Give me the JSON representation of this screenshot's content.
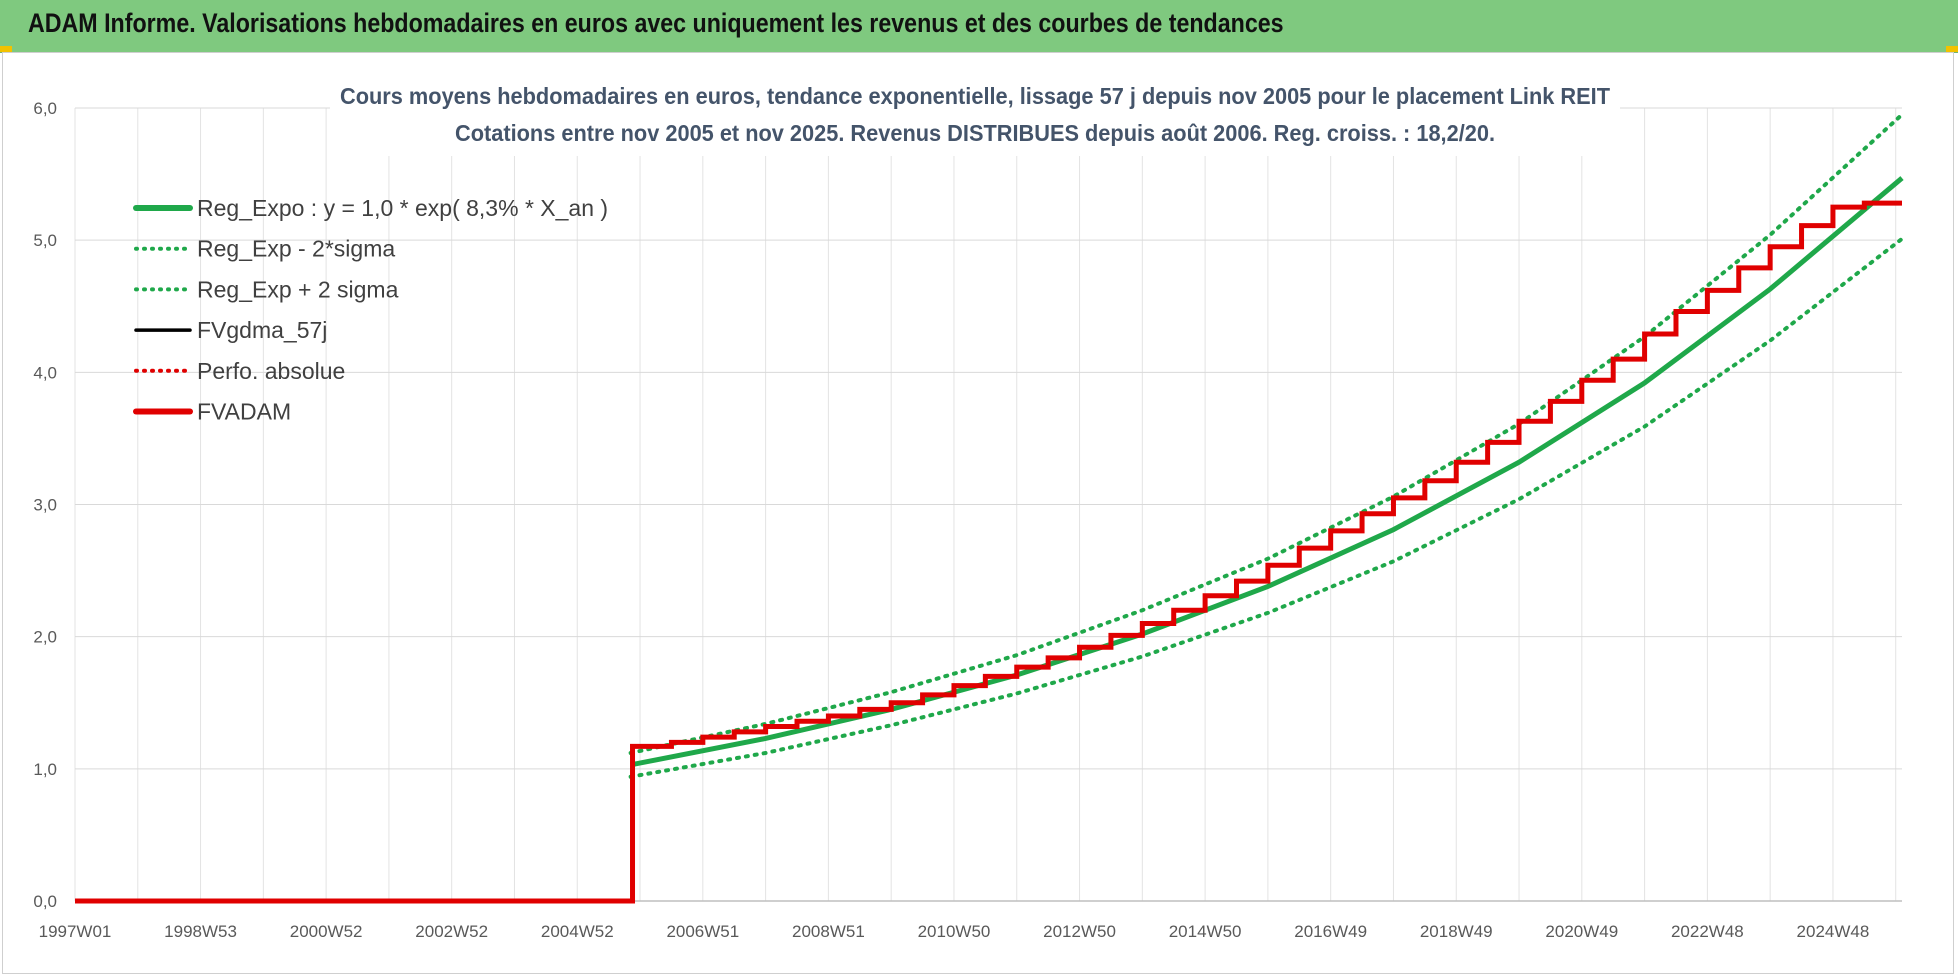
{
  "header": {
    "title": "ADAM Informe. Valorisations hebdomadaires en euros avec uniquement les revenus et des courbes de tendances"
  },
  "colors": {
    "header_bg": "#7fc97f",
    "reg_expo": "#1fa84a",
    "bands": "#1fa84a",
    "fvgdma": "#000000",
    "perfo": "#e00000",
    "fvadam": "#e00000"
  },
  "chart_data": {
    "type": "line",
    "title_lines": [
      "Cours moyens hebdomadaires en euros, tendance exponentielle, lissage 57 j depuis nov 2005 pour le placement Link REIT",
      "Cotations entre nov 2005 et nov 2025. Revenus DISTRIBUES depuis août 2006. Reg. croiss. : 18,2/20."
    ],
    "xlabel": "",
    "ylabel": "",
    "x_range": [
      1997.0,
      2026.1
    ],
    "ylim": [
      0,
      6
    ],
    "y_ticks": [
      "0,0",
      "1,0",
      "2,0",
      "3,0",
      "4,0",
      "5,0",
      "6,0"
    ],
    "x_ticks": [
      "1997W01",
      "1998W53",
      "2000W52",
      "2002W52",
      "2004W52",
      "2006W51",
      "2008W51",
      "2010W50",
      "2012W50",
      "2014W50",
      "2016W49",
      "2018W49",
      "2020W49",
      "2022W48",
      "2024W48"
    ],
    "grid": true,
    "legend_position": "top-left",
    "legend": [
      {
        "label": "Reg_Expo : y = 1,0 * exp( 8,3% *  X_an )",
        "style": "solid-thick",
        "color": "#1fa84a"
      },
      {
        "label": "Reg_Exp - 2*sigma",
        "style": "dotted",
        "color": "#1fa84a"
      },
      {
        "label": "Reg_Exp + 2 sigma",
        "style": "dotted",
        "color": "#1fa84a"
      },
      {
        "label": "FVgdma_57j",
        "style": "solid",
        "color": "#000000"
      },
      {
        "label": "Perfo. absolue",
        "style": "dotted",
        "color": "#e00000"
      },
      {
        "label": "FVADAM",
        "style": "solid-thick",
        "color": "#e00000"
      }
    ],
    "series": [
      {
        "name": "Reg_Expo : y = 1,0 * exp( 8,3% *  X_an )",
        "x": [
          2005.85,
          2008,
          2010,
          2012,
          2014,
          2016,
          2018,
          2020,
          2022,
          2024,
          2026.1
        ],
        "values": [
          1.03,
          1.23,
          1.45,
          1.71,
          2.02,
          2.38,
          2.81,
          3.32,
          3.92,
          4.63,
          5.47
        ]
      },
      {
        "name": "Reg_Exp - 2*sigma",
        "x": [
          2005.85,
          2008,
          2010,
          2012,
          2014,
          2016,
          2018,
          2020,
          2022,
          2024,
          2026.1
        ],
        "values": [
          0.94,
          1.12,
          1.33,
          1.57,
          1.85,
          2.18,
          2.57,
          3.04,
          3.59,
          4.24,
          5.01
        ]
      },
      {
        "name": "Reg_Exp + 2 sigma",
        "x": [
          2005.85,
          2008,
          2010,
          2012,
          2014,
          2016,
          2018,
          2020,
          2022,
          2024,
          2026.1
        ],
        "values": [
          1.12,
          1.34,
          1.58,
          1.86,
          2.2,
          2.59,
          3.06,
          3.61,
          4.27,
          5.04,
          5.95
        ]
      },
      {
        "name": "FVADAM",
        "x": [
          1997.0,
          2005.88,
          2005.88,
          2006.5,
          2007.0,
          2007.5,
          2008.0,
          2008.5,
          2009.0,
          2009.5,
          2010.0,
          2010.5,
          2011.0,
          2011.5,
          2012.0,
          2012.5,
          2013.0,
          2013.5,
          2014.0,
          2014.5,
          2015.0,
          2015.5,
          2016.0,
          2016.5,
          2017.0,
          2017.5,
          2018.0,
          2018.5,
          2019.0,
          2019.5,
          2020.0,
          2020.5,
          2021.0,
          2021.5,
          2022.0,
          2022.5,
          2023.0,
          2023.5,
          2024.0,
          2024.5,
          2025.0,
          2025.5,
          2026.1
        ],
        "values": [
          0.0,
          0.0,
          1.17,
          1.2,
          1.24,
          1.28,
          1.32,
          1.36,
          1.4,
          1.45,
          1.5,
          1.56,
          1.63,
          1.7,
          1.77,
          1.84,
          1.92,
          2.01,
          2.1,
          2.2,
          2.31,
          2.42,
          2.54,
          2.67,
          2.8,
          2.93,
          3.05,
          3.18,
          3.32,
          3.47,
          3.63,
          3.78,
          3.94,
          4.1,
          4.29,
          4.46,
          4.62,
          4.79,
          4.95,
          5.11,
          5.25,
          5.28,
          5.28
        ]
      }
    ]
  }
}
